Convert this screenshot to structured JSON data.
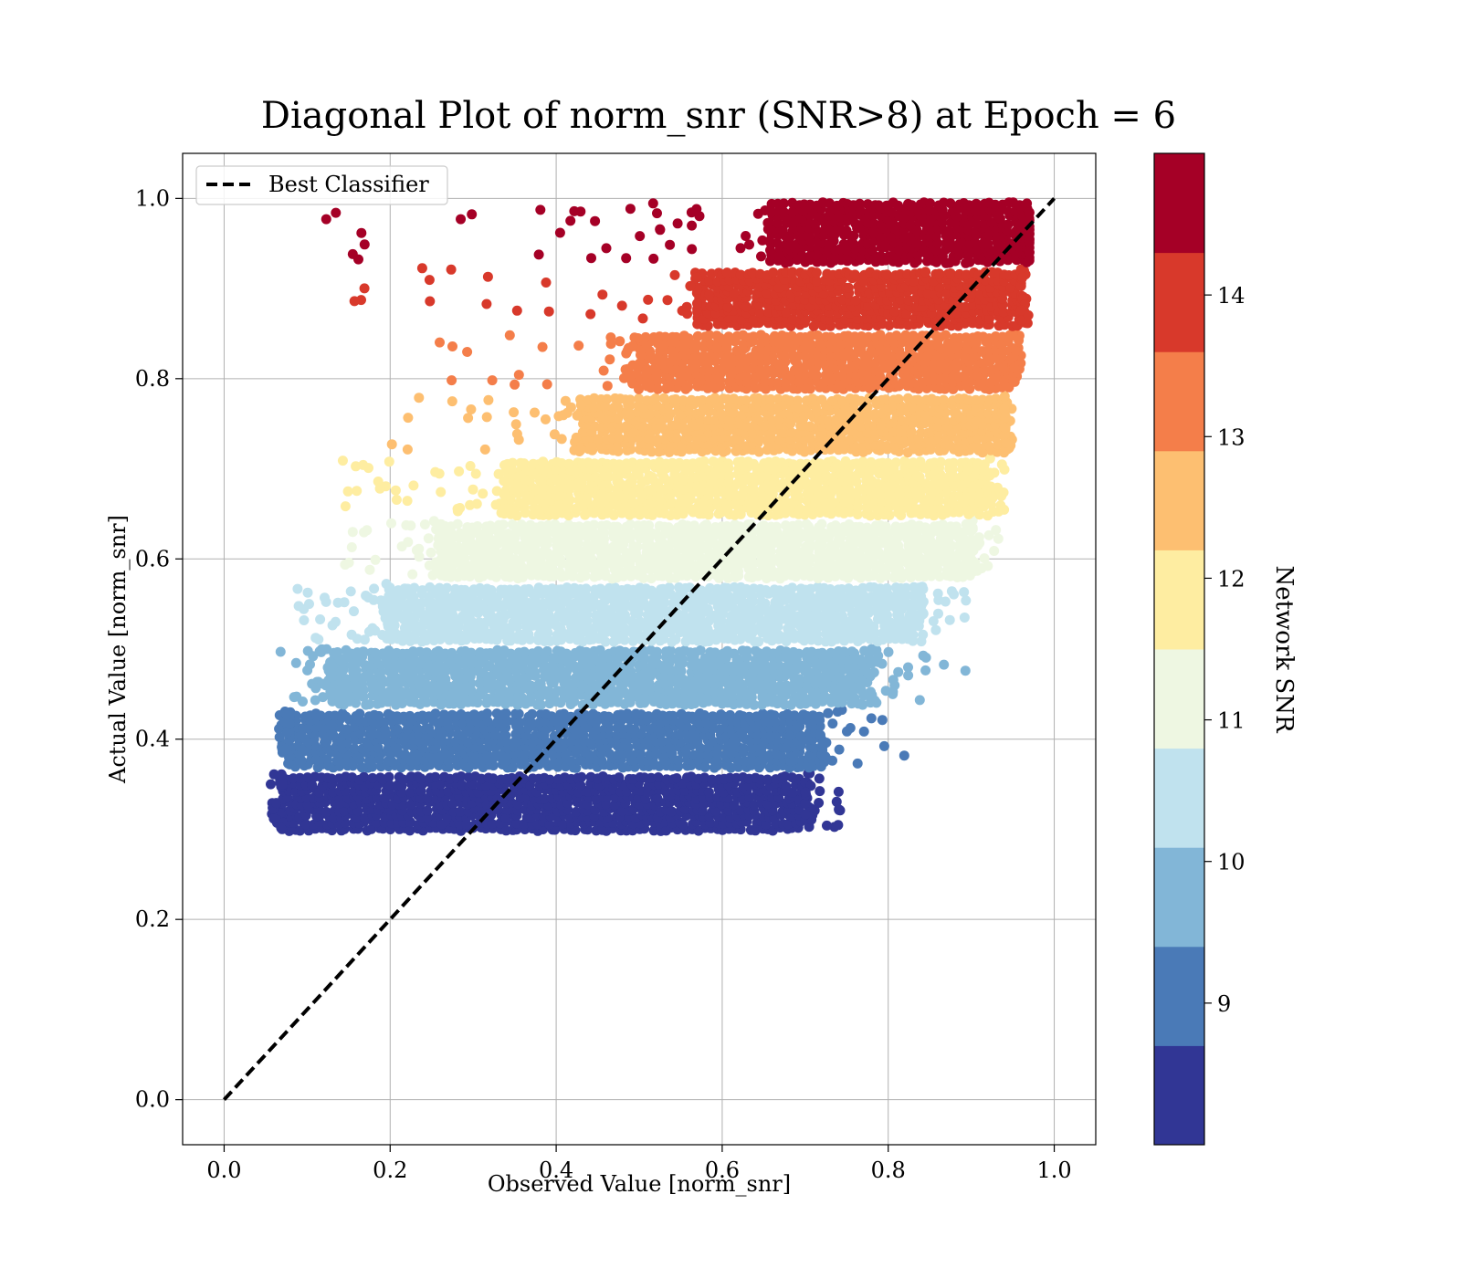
{
  "chart_data": {
    "type": "scatter",
    "title": "Diagonal Plot of norm_snr (SNR>8) at Epoch = 6",
    "xlabel": "Observed Value [norm_snr]",
    "ylabel": "Actual Value [norm_snr]",
    "xlim": [
      -0.05,
      1.05
    ],
    "ylim": [
      -0.05,
      1.05
    ],
    "xticks": [
      "0.0",
      "0.2",
      "0.4",
      "0.6",
      "0.8",
      "1.0"
    ],
    "yticks": [
      "0.0",
      "0.2",
      "0.4",
      "0.6",
      "0.8",
      "1.0"
    ],
    "grid": true,
    "legend": {
      "placement": "upper-left",
      "entries": [
        {
          "label": "Best Classifier",
          "style": "black dashed line"
        }
      ]
    },
    "reference_line": {
      "label": "Best Classifier",
      "x": [
        0.0,
        1.0
      ],
      "y": [
        0.0,
        1.0
      ],
      "color": "#000000",
      "dash": true
    },
    "colorbar": {
      "label": "Network SNR",
      "range": [
        8.0,
        15.0
      ],
      "ticks": [
        "9",
        "10",
        "11",
        "12",
        "13",
        "14"
      ],
      "tick_values": [
        9,
        10,
        11,
        12,
        13,
        14
      ],
      "colormap": "RdYlBu_r"
    },
    "bands": [
      {
        "snr": [
          8.0,
          8.7
        ],
        "color": "#313695",
        "y": [
          0.3,
          0.363
        ],
        "core_x": [
          0.07,
          0.7
        ],
        "scatter_x": [
          0.055,
          0.745
        ]
      },
      {
        "snr": [
          8.7,
          9.4
        ],
        "color": "#4a7ab7",
        "y": [
          0.37,
          0.433
        ],
        "core_x": [
          0.08,
          0.72
        ],
        "scatter_x": [
          0.065,
          0.82
        ]
      },
      {
        "snr": [
          9.4,
          10.1
        ],
        "color": "#82b6d7",
        "y": [
          0.44,
          0.5
        ],
        "core_x": [
          0.13,
          0.78
        ],
        "scatter_x": [
          0.08,
          0.89
        ]
      },
      {
        "snr": [
          10.1,
          10.8
        ],
        "color": "#c0e2ee",
        "y": [
          0.51,
          0.573
        ],
        "core_x": [
          0.2,
          0.84
        ],
        "scatter_x": [
          0.07,
          0.895
        ]
      },
      {
        "snr": [
          10.8,
          11.5
        ],
        "color": "#eef7e2",
        "y": [
          0.58,
          0.643
        ],
        "core_x": [
          0.26,
          0.9
        ],
        "scatter_x": [
          0.14,
          0.935
        ]
      },
      {
        "snr": [
          11.5,
          12.2
        ],
        "color": "#feeda1",
        "y": [
          0.65,
          0.713
        ],
        "core_x": [
          0.34,
          0.92
        ],
        "scatter_x": [
          0.14,
          0.95
        ]
      },
      {
        "snr": [
          12.2,
          12.9
        ],
        "color": "#fdbf71",
        "y": [
          0.72,
          0.783
        ],
        "core_x": [
          0.43,
          0.94
        ],
        "scatter_x": [
          0.2,
          0.95
        ]
      },
      {
        "snr": [
          12.9,
          13.6
        ],
        "color": "#f47e4a",
        "y": [
          0.79,
          0.853
        ],
        "core_x": [
          0.5,
          0.95
        ],
        "scatter_x": [
          0.25,
          0.96
        ]
      },
      {
        "snr": [
          13.6,
          14.3
        ],
        "color": "#d8392b",
        "y": [
          0.86,
          0.923
        ],
        "core_x": [
          0.57,
          0.96
        ],
        "scatter_x": [
          0.155,
          0.97
        ]
      },
      {
        "snr": [
          14.3,
          15.0
        ],
        "color": "#a50026",
        "y": [
          0.93,
          0.998
        ],
        "core_x": [
          0.66,
          0.97
        ],
        "scatter_x": [
          0.12,
          0.97
        ]
      }
    ],
    "notable_points": [
      {
        "x": 0.123,
        "y": 0.977,
        "color": "#a50026"
      },
      {
        "x": 0.285,
        "y": 0.977,
        "color": "#a50026"
      },
      {
        "x": 0.157,
        "y": 0.886,
        "color": "#d8392b"
      },
      {
        "x": 0.143,
        "y": 0.709,
        "color": "#feeda1"
      },
      {
        "x": 0.068,
        "y": 0.497,
        "color": "#82b6d7"
      },
      {
        "x": 0.742,
        "y": 0.321,
        "color": "#313695"
      },
      {
        "x": 0.893,
        "y": 0.476,
        "color": "#82b6d7"
      },
      {
        "x": 0.892,
        "y": 0.535,
        "color": "#c0e2ee"
      }
    ]
  }
}
